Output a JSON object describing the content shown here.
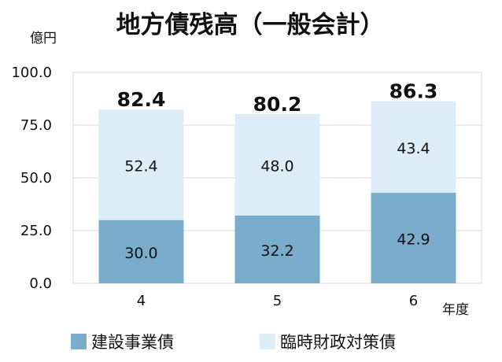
{
  "chart_data": {
    "type": "bar",
    "stacked": true,
    "title": "地方債残高（一般会計）",
    "ylabel": "億円",
    "xlabel": "年度",
    "categories": [
      "4",
      "5",
      "6"
    ],
    "series": [
      {
        "name": "建設事業債",
        "values": [
          30.0,
          32.2,
          42.9
        ],
        "color": "#7AADCB"
      },
      {
        "name": "臨時財政対策債",
        "values": [
          52.4,
          48.0,
          43.4
        ],
        "color": "#DCEDF8"
      }
    ],
    "totals": [
      82.4,
      80.2,
      86.3
    ],
    "ylim": [
      0,
      100
    ],
    "yticks": [
      "0.0",
      "25.0",
      "50.0",
      "75.0",
      "100.0"
    ],
    "grid": true,
    "legend_position": "bottom"
  }
}
